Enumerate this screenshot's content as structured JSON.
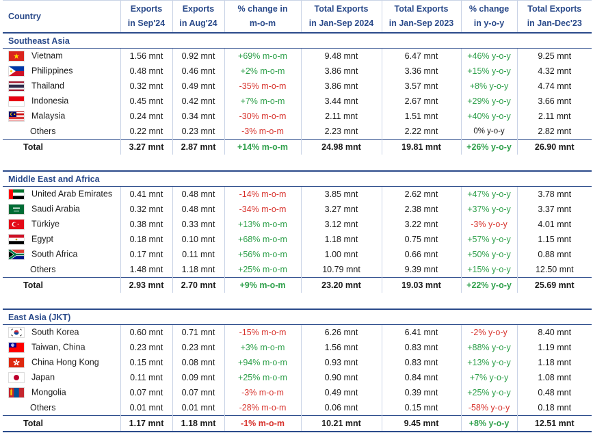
{
  "header": {
    "country": "Country",
    "c1": [
      "Exports",
      "in Sep'24"
    ],
    "c2": [
      "Exports",
      "in Aug'24"
    ],
    "c3": [
      "% change in",
      "m-o-m"
    ],
    "c4": [
      "Total Exports",
      "in Jan-Sep 2024"
    ],
    "c5": [
      "Total Exports",
      "in Jan-Sep 2023"
    ],
    "c6": [
      "% change",
      "in y-o-y"
    ],
    "c7": [
      "Total Exports",
      "in Jan-Dec'23"
    ]
  },
  "sections": [
    {
      "region": "Southeast Asia",
      "rows": [
        {
          "flag": "vietnam-flag-icon",
          "name": "Vietnam",
          "sep": "1.56 mnt",
          "aug": "0.92 mnt",
          "mom": "+69% m-o-m",
          "mom_dir": "up",
          "ytd24": "9.48 mnt",
          "ytd23": "6.47 mnt",
          "yoy": "+46% y-o-y",
          "yoy_dir": "up",
          "fy23": "9.25 mnt"
        },
        {
          "flag": "philippines-flag-icon",
          "name": "Philippines",
          "sep": "0.48 mnt",
          "aug": "0.46 mnt",
          "mom": "+2% m-o-m",
          "mom_dir": "up",
          "ytd24": "3.86 mnt",
          "ytd23": "3.36 mnt",
          "yoy": "+15% y-o-y",
          "yoy_dir": "up",
          "fy23": "4.32 mnt"
        },
        {
          "flag": "thailand-flag-icon",
          "name": "Thailand",
          "sep": "0.32 mnt",
          "aug": "0.49 mnt",
          "mom": "-35% m-o-m",
          "mom_dir": "down",
          "ytd24": "3.86 mnt",
          "ytd23": "3.57 mnt",
          "yoy": "+8% y-o-y",
          "yoy_dir": "up",
          "fy23": "4.74 mnt"
        },
        {
          "flag": "indonesia-flag-icon",
          "name": "Indonesia",
          "sep": "0.45 mnt",
          "aug": "0.42 mnt",
          "mom": "+7% m-o-m",
          "mom_dir": "up",
          "ytd24": "3.44 mnt",
          "ytd23": "2.67 mnt",
          "yoy": "+29% y-o-y",
          "yoy_dir": "up",
          "fy23": "3.66 mnt"
        },
        {
          "flag": "malaysia-flag-icon",
          "name": "Malaysia",
          "sep": "0.24 mnt",
          "aug": "0.34 mnt",
          "mom": "-30% m-o-m",
          "mom_dir": "down",
          "ytd24": "2.11 mnt",
          "ytd23": "1.51 mnt",
          "yoy": "+40% y-o-y",
          "yoy_dir": "up",
          "fy23": "2.11 mnt"
        },
        {
          "flag": "",
          "name": "Others",
          "sep": "0.22 mnt",
          "aug": "0.23 mnt",
          "mom": "-3% m-o-m",
          "mom_dir": "down",
          "ytd24": "2.23 mnt",
          "ytd23": "2.22 mnt",
          "yoy": "0% y-o-y",
          "yoy_dir": "flat",
          "fy23": "2.82 mnt"
        }
      ],
      "total": {
        "name": "Total",
        "sep": "3.27 mnt",
        "aug": "2.87 mnt",
        "mom": "+14% m-o-m",
        "mom_dir": "up",
        "ytd24": "24.98 mnt",
        "ytd23": "19.81 mnt",
        "yoy": "+26% y-o-y",
        "yoy_dir": "up",
        "fy23": "26.90 mnt"
      }
    },
    {
      "region": "Middle East and Africa",
      "rows": [
        {
          "flag": "uae-flag-icon",
          "name": "United Arab Emirates",
          "sep": "0.41 mnt",
          "aug": "0.48 mnt",
          "mom": "-14% m-o-m",
          "mom_dir": "down",
          "ytd24": "3.85 mnt",
          "ytd23": "2.62 mnt",
          "yoy": "+47% y-o-y",
          "yoy_dir": "up",
          "fy23": "3.78 mnt"
        },
        {
          "flag": "saudi-arabia-flag-icon",
          "name": "Saudi Arabia",
          "sep": "0.32 mnt",
          "aug": "0.48 mnt",
          "mom": "-34% m-o-m",
          "mom_dir": "down",
          "ytd24": "3.27 mnt",
          "ytd23": "2.38 mnt",
          "yoy": "+37% y-o-y",
          "yoy_dir": "up",
          "fy23": "3.37 mnt"
        },
        {
          "flag": "turkiye-flag-icon",
          "name": "Türkiye",
          "sep": "0.38 mnt",
          "aug": "0.33 mnt",
          "mom": "+13% m-o-m",
          "mom_dir": "up",
          "ytd24": "3.12 mnt",
          "ytd23": "3.22 mnt",
          "yoy": "-3% y-o-y",
          "yoy_dir": "down",
          "fy23": "4.01 mnt"
        },
        {
          "flag": "egypt-flag-icon",
          "name": "Egypt",
          "sep": "0.18 mnt",
          "aug": "0.10 mnt",
          "mom": "+68% m-o-m",
          "mom_dir": "up",
          "ytd24": "1.18 mnt",
          "ytd23": "0.75 mnt",
          "yoy": "+57% y-o-y",
          "yoy_dir": "up",
          "fy23": "1.15 mnt"
        },
        {
          "flag": "south-africa-flag-icon",
          "name": "South Africa",
          "sep": "0.17 mnt",
          "aug": "0.11 mnt",
          "mom": "+56% m-o-m",
          "mom_dir": "up",
          "ytd24": "1.00 mnt",
          "ytd23": "0.66 mnt",
          "yoy": "+50% y-o-y",
          "yoy_dir": "up",
          "fy23": "0.88 mnt"
        },
        {
          "flag": "",
          "name": "Others",
          "sep": "1.48 mnt",
          "aug": "1.18 mnt",
          "mom": "+25% m-o-m",
          "mom_dir": "up",
          "ytd24": "10.79 mnt",
          "ytd23": "9.39 mnt",
          "yoy": "+15% y-o-y",
          "yoy_dir": "up",
          "fy23": "12.50 mnt"
        }
      ],
      "total": {
        "name": "Total",
        "sep": "2.93 mnt",
        "aug": "2.70 mnt",
        "mom": "+9% m-o-m",
        "mom_dir": "up",
        "ytd24": "23.20 mnt",
        "ytd23": "19.03 mnt",
        "yoy": "+22% y-o-y",
        "yoy_dir": "up",
        "fy23": "25.69 mnt"
      }
    },
    {
      "region": "East Asia (JKT)",
      "rows": [
        {
          "flag": "south-korea-flag-icon",
          "name": "South Korea",
          "sep": "0.60 mnt",
          "aug": "0.71 mnt",
          "mom": "-15% m-o-m",
          "mom_dir": "down",
          "ytd24": "6.26 mnt",
          "ytd23": "6.41 mnt",
          "yoy": "-2% y-o-y",
          "yoy_dir": "down",
          "fy23": "8.40 mnt"
        },
        {
          "flag": "taiwan-flag-icon",
          "name": "Taiwan, China",
          "sep": "0.23 mnt",
          "aug": "0.23 mnt",
          "mom": "+3% m-o-m",
          "mom_dir": "up",
          "ytd24": "1.56 mnt",
          "ytd23": "0.83 mnt",
          "yoy": "+88% y-o-y",
          "yoy_dir": "up",
          "fy23": "1.19 mnt"
        },
        {
          "flag": "hong-kong-flag-icon",
          "name": "China Hong Kong",
          "sep": "0.15 mnt",
          "aug": "0.08 mnt",
          "mom": "+94% m-o-m",
          "mom_dir": "up",
          "ytd24": "0.93 mnt",
          "ytd23": "0.83 mnt",
          "yoy": "+13% y-o-y",
          "yoy_dir": "up",
          "fy23": "1.18 mnt"
        },
        {
          "flag": "japan-flag-icon",
          "name": "Japan",
          "sep": "0.11 mnt",
          "aug": "0.09 mnt",
          "mom": "+25% m-o-m",
          "mom_dir": "up",
          "ytd24": "0.90 mnt",
          "ytd23": "0.84 mnt",
          "yoy": "+7% y-o-y",
          "yoy_dir": "up",
          "fy23": "1.08 mnt"
        },
        {
          "flag": "mongolia-flag-icon",
          "name": "Mongolia",
          "sep": "0.07 mnt",
          "aug": "0.07 mnt",
          "mom": "-3% m-o-m",
          "mom_dir": "down",
          "ytd24": "0.49 mnt",
          "ytd23": "0.39 mnt",
          "yoy": "+25% y-o-y",
          "yoy_dir": "up",
          "fy23": "0.48 mnt"
        },
        {
          "flag": "",
          "name": "Others",
          "sep": "0.01 mnt",
          "aug": "0.01 mnt",
          "mom": "-28% m-o-m",
          "mom_dir": "down",
          "ytd24": "0.06 mnt",
          "ytd23": "0.15 mnt",
          "yoy": "-58% y-o-y",
          "yoy_dir": "down",
          "fy23": "0.18 mnt"
        }
      ],
      "total": {
        "name": "Total",
        "sep": "1.17 mnt",
        "aug": "1.18 mnt",
        "mom": "-1% m-o-m",
        "mom_dir": "down",
        "ytd24": "10.21 mnt",
        "ytd23": "9.45 mnt",
        "yoy": "+8% y-o-y",
        "yoy_dir": "up",
        "fy23": "12.51 mnt"
      }
    }
  ],
  "colors": {
    "header_text": "#2a4a8a",
    "positive": "#2fa04b",
    "negative": "#d7312b"
  }
}
